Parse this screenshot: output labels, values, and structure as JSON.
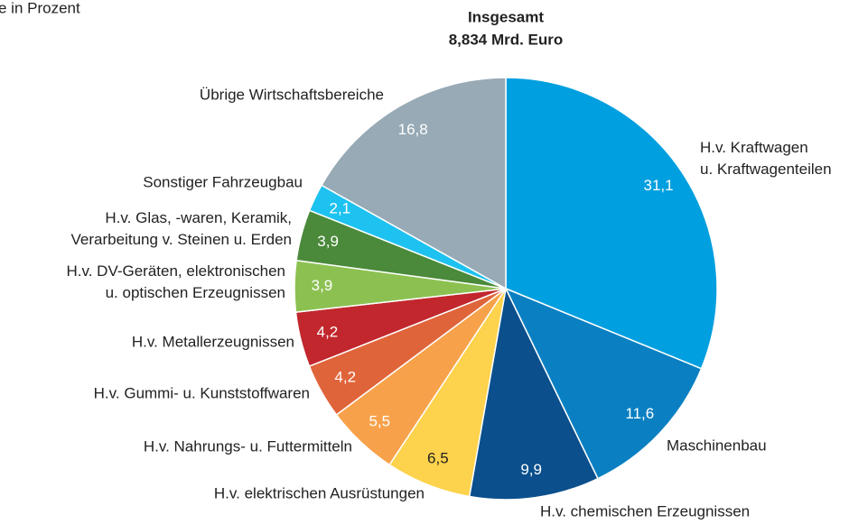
{
  "chart_data": {
    "type": "pie",
    "caption": "e in Prozent",
    "title": "Insgesamt",
    "subtitle": "8,834 Mrd. Euro",
    "categories": [
      "H.v. Kraftwagen\nu. Kraftwagenteilen",
      "Maschinenbau",
      "H.v. chemischen Erzeugnissen",
      "H.v. elektrischen Ausrüstungen",
      "H.v. Nahrungs- u. Futtermitteln",
      "H.v. Gummi- u. Kunststoffwaren",
      "H.v. Metallerzeugnissen",
      "H.v. DV-Geräten, elektronischen\nu. optischen Erzeugnissen",
      "H.v. Glas, -waren, Keramik,\nVerarbeitung v. Steinen u. Erden",
      "Sonstiger Fahrzeugbau",
      "Übrige Wirtschaftsbereiche"
    ],
    "values": [
      31.1,
      11.6,
      9.9,
      6.5,
      5.5,
      4.2,
      4.2,
      3.9,
      3.9,
      2.1,
      16.8
    ],
    "value_labels": [
      "31,1",
      "11,6",
      "9,9",
      "6,5",
      "5,5",
      "4,2",
      "4,2",
      "3,9",
      "3,9",
      "2,1",
      "16,8"
    ],
    "colors": [
      "#009fdf",
      "#0a80c2",
      "#0b4f8c",
      "#fdd24c",
      "#f7a24b",
      "#e0643a",
      "#c1272d",
      "#8cc152",
      "#4a8a3a",
      "#1ec2f0",
      "#97aab5"
    ]
  }
}
